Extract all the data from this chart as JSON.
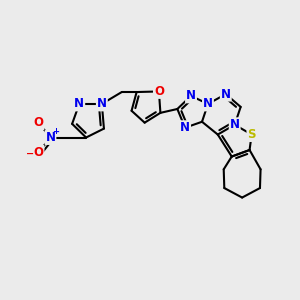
{
  "background_color": "#ebebeb",
  "atom_colors": {
    "C": "#000000",
    "N": "#0000ee",
    "O": "#ee0000",
    "S": "#bbbb00",
    "H": "#000000"
  },
  "bond_color": "#000000",
  "bond_lw": 1.5,
  "font_size": 8.5
}
